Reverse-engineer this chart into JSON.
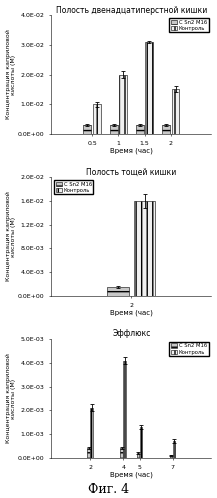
{
  "chart1": {
    "title": "Полость двенадцатиперстной кишки",
    "xlabel": "Время (час)",
    "ylabel": "Концентрация каприловой\nкислоты (М)",
    "x_ticks": [
      0.5,
      1.0,
      1.5,
      2.0
    ],
    "x_labels": [
      "0.5",
      "1",
      "1.5",
      "2"
    ],
    "ylim": [
      0,
      0.04
    ],
    "yticks": [
      0.0,
      0.01,
      0.02,
      0.03,
      0.04
    ],
    "ytick_labels": [
      "0.0E+00",
      "1.0E-02",
      "2.0E-02",
      "3.0E-02",
      "4.0E-02"
    ],
    "series1_values": [
      0.003,
      0.003,
      0.003,
      0.003
    ],
    "series1_errors": [
      0.0004,
      0.0004,
      0.0004,
      0.0004
    ],
    "series2_values": [
      0.01,
      0.02,
      0.031,
      0.015
    ],
    "series2_errors": [
      0.0008,
      0.0012,
      0.0005,
      0.001
    ],
    "legend_labels": [
      "C Sn2 M16",
      "Контроль"
    ],
    "legend_loc": "upper right"
  },
  "chart2": {
    "title": "Полость тощей кишки",
    "xlabel": "Время (час)",
    "ylabel": "Концентрация каприловой\nкислоты (М)",
    "x_ticks": [
      2
    ],
    "x_labels": [
      "2"
    ],
    "ylim": [
      0,
      0.02
    ],
    "yticks": [
      0.0,
      0.004,
      0.008,
      0.012,
      0.016,
      0.02
    ],
    "ytick_labels": [
      "0.0E+00",
      "4.0E-03",
      "8.0E-03",
      "1.2E-02",
      "1.6E-02",
      "2.0E-02"
    ],
    "series1_values": [
      0.0015
    ],
    "series1_errors": [
      0.0002
    ],
    "series2_values": [
      0.016
    ],
    "series2_errors": [
      0.0012
    ],
    "legend_labels": [
      "C Sn2 M16",
      "Контроль"
    ],
    "legend_loc": "upper left"
  },
  "chart3": {
    "title": "Эффлюкс",
    "xlabel": "Время (час)",
    "ylabel": "Концентрация каприловой\nкислоты (М)",
    "x_ticks": [
      2,
      4,
      5,
      7
    ],
    "x_labels": [
      "2",
      "4",
      "5",
      "7"
    ],
    "ylim": [
      0,
      0.005
    ],
    "yticks": [
      0.0,
      0.001,
      0.002,
      0.003,
      0.004,
      0.005
    ],
    "ytick_labels": [
      "0.0E+00",
      "1.0E-03",
      "2.0E-03",
      "3.0E-03",
      "4.0E-03",
      "5.0E-03"
    ],
    "series1_values": [
      0.0004,
      0.0004,
      0.0002,
      0.0001
    ],
    "series1_errors": [
      5e-05,
      5e-05,
      3e-05,
      2e-05
    ],
    "series2_values": [
      0.0021,
      0.0041,
      0.0013,
      0.0007
    ],
    "series2_errors": [
      0.00015,
      0.00015,
      0.0001,
      8e-05
    ],
    "legend_labels": [
      "C Sn2 M16",
      "Контроль"
    ],
    "legend_loc": "upper right"
  },
  "fig4_label": "Фиг. 4",
  "bar_width": 0.15,
  "color1": "#c8c8c8",
  "color2": "#f0f0f0",
  "hatch1": "---",
  "hatch2": "|||"
}
